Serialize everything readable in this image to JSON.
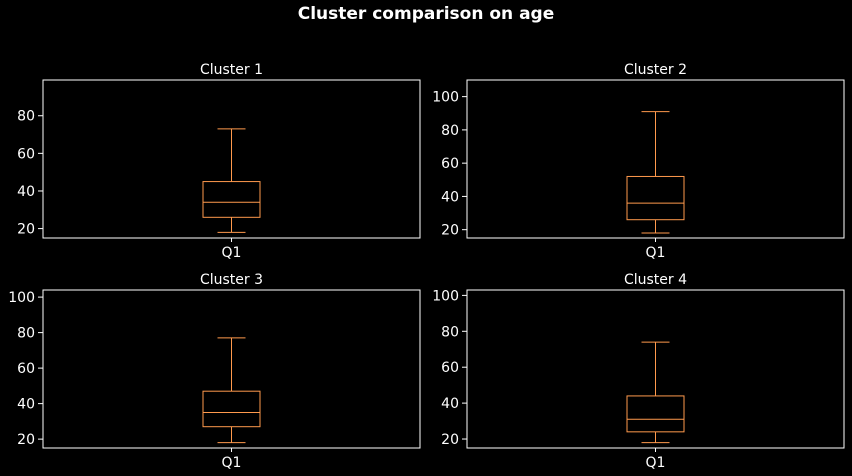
{
  "figure_title": "Cluster comparison on age",
  "colors": {
    "background": "#000000",
    "axes": "#ffffff",
    "box": "#ff9a4d",
    "text": "#ffffff"
  },
  "chart_data": [
    {
      "type": "box",
      "title": "Cluster 1",
      "categories": [
        "Q1"
      ],
      "ylim": [
        15,
        99
      ],
      "yticks": [
        20,
        40,
        60,
        80
      ],
      "boxes": [
        {
          "whisker_low": 18,
          "q1": 26,
          "median": 34,
          "q3": 45,
          "whisker_high": 73
        }
      ]
    },
    {
      "type": "box",
      "title": "Cluster 2",
      "categories": [
        "Q1"
      ],
      "ylim": [
        15,
        110
      ],
      "yticks": [
        20,
        40,
        60,
        80,
        100
      ],
      "boxes": [
        {
          "whisker_low": 18,
          "q1": 26,
          "median": 36,
          "q3": 52,
          "whisker_high": 91
        }
      ]
    },
    {
      "type": "box",
      "title": "Cluster 3",
      "categories": [
        "Q1"
      ],
      "ylim": [
        15,
        104
      ],
      "yticks": [
        20,
        40,
        60,
        80,
        100
      ],
      "boxes": [
        {
          "whisker_low": 18,
          "q1": 27,
          "median": 35,
          "q3": 47,
          "whisker_high": 77
        }
      ]
    },
    {
      "type": "box",
      "title": "Cluster 4",
      "categories": [
        "Q1"
      ],
      "ylim": [
        15,
        103
      ],
      "yticks": [
        20,
        40,
        60,
        80,
        100
      ],
      "boxes": [
        {
          "whisker_low": 18,
          "q1": 24,
          "median": 31,
          "q3": 44,
          "whisker_high": 74
        }
      ]
    }
  ]
}
